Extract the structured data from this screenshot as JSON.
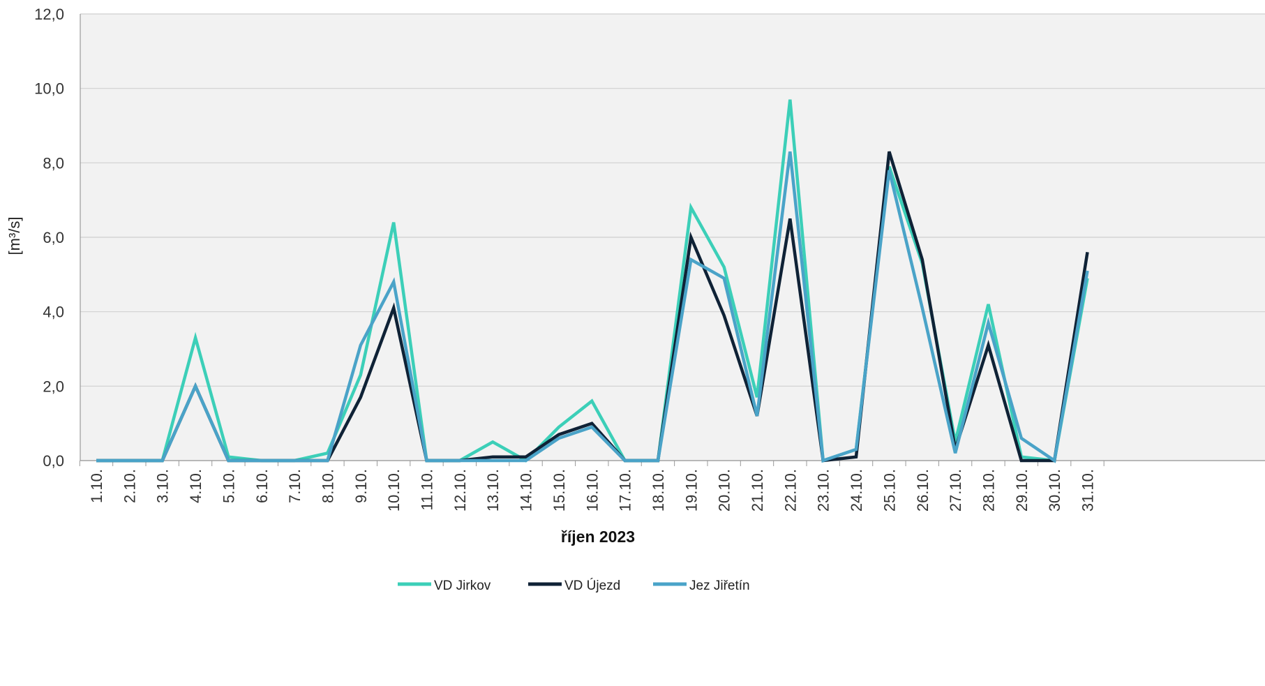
{
  "chart_data": {
    "type": "line",
    "xlabel": "říjen 2023",
    "ylabel": "[m³/s]",
    "ylim": [
      0,
      12
    ],
    "yticks": [
      "0,0",
      "2,0",
      "4,0",
      "6,0",
      "8,0",
      "10,0",
      "12,0"
    ],
    "grid": true,
    "legend_position": "bottom",
    "categories": [
      "1.10.",
      "2.10.",
      "3.10.",
      "4.10.",
      "5.10.",
      "6.10.",
      "7.10.",
      "8.10.",
      "9.10.",
      "10.10.",
      "11.10.",
      "12.10.",
      "13.10.",
      "14.10.",
      "15.10.",
      "16.10.",
      "17.10.",
      "18.10.",
      "19.10.",
      "20.10.",
      "21.10.",
      "22.10.",
      "23.10.",
      "24.10.",
      "25.10.",
      "26.10.",
      "27.10.",
      "28.10.",
      "29.10.",
      "30.10.",
      "31.10."
    ],
    "series": [
      {
        "name": "VD Jirkov",
        "color": "#3ccfb8",
        "values": [
          0,
          0,
          0,
          3.3,
          0.1,
          0,
          0,
          0.2,
          2.3,
          6.4,
          0,
          0,
          0.5,
          0,
          0.9,
          1.6,
          0,
          0,
          6.8,
          5.2,
          1.7,
          9.7,
          0,
          0.3,
          7.9,
          5.3,
          0.5,
          4.2,
          0.1,
          0,
          4.9
        ]
      },
      {
        "name": "VD Újezd",
        "color": "#0f2236",
        "values": [
          0,
          0,
          0,
          2.0,
          0,
          0,
          0,
          0,
          1.7,
          4.1,
          0,
          0,
          0.1,
          0.1,
          0.7,
          1.0,
          0,
          0,
          6.0,
          3.9,
          1.2,
          6.5,
          0,
          0.1,
          8.3,
          5.4,
          0.3,
          3.1,
          0,
          0,
          5.6
        ]
      },
      {
        "name": "Jez Jiřetín",
        "color": "#4aa3c8",
        "values": [
          0,
          0,
          0,
          2.0,
          0,
          0,
          0,
          0,
          3.1,
          4.8,
          0,
          0,
          0,
          0,
          0.6,
          0.9,
          0,
          0,
          5.4,
          4.9,
          1.2,
          8.3,
          0,
          0.3,
          7.8,
          4.1,
          0.2,
          3.7,
          0.6,
          0,
          5.1
        ]
      }
    ]
  }
}
